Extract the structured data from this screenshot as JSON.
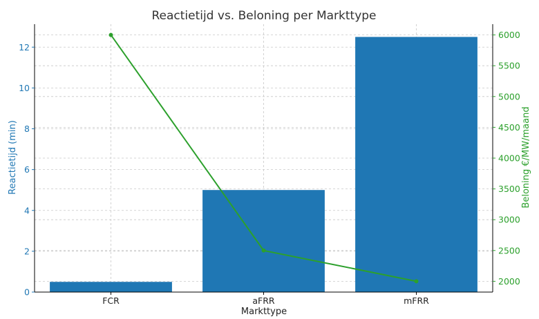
{
  "chart_data": {
    "type": "bar",
    "title": "Reactietijd vs. Beloning per Markttype",
    "xlabel": "Markttype",
    "ylabel": "Reactietijd (min)",
    "y2label": "Beloning €/MW/maand",
    "categories": [
      "FCR",
      "aFRR",
      "mFRR"
    ],
    "ylim": [
      0,
      13.125
    ],
    "y2lim": [
      1825,
      6175
    ],
    "y_ticks": [
      0,
      2,
      4,
      6,
      8,
      10,
      12
    ],
    "y2_ticks": [
      2000,
      2500,
      3000,
      3500,
      4000,
      4500,
      5000,
      5500,
      6000
    ],
    "grid": true,
    "series": [
      {
        "type": "bar",
        "axis": "left",
        "color": "#1f77b4",
        "values": [
          0.5,
          5,
          12.5
        ]
      },
      {
        "type": "line",
        "axis": "right",
        "color": "#2ca02c",
        "values": [
          6000,
          2500,
          2000
        ]
      }
    ]
  }
}
